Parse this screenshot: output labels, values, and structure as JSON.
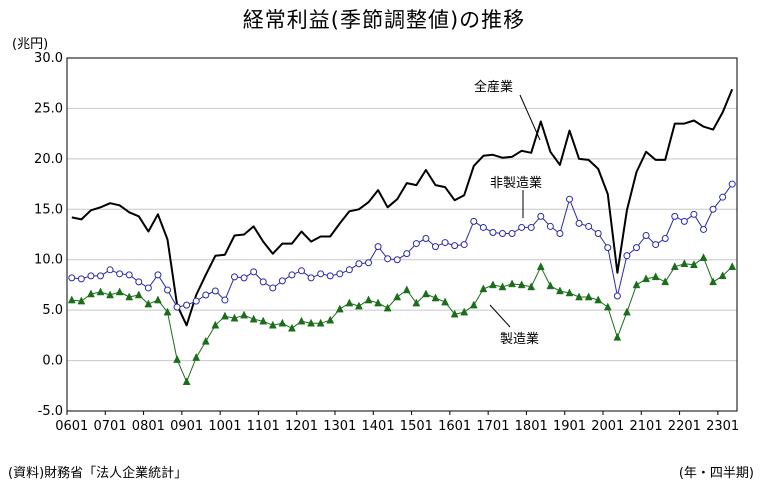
{
  "title": "経常利益(季節調整値)の推移",
  "unit_label": "(兆円)",
  "source_label": "(資料)財務省「法人企業統計」",
  "period_label": "(年・四半期)",
  "annotations": {
    "all": "全産業",
    "nonmfg": "非製造業",
    "mfg": "製造業"
  },
  "colors": {
    "all": "#000000",
    "nonmfg": "#2a2aa8",
    "mfg": "#1a6e1a",
    "grid": "#c8c8c8"
  },
  "chart_data": {
    "type": "line",
    "title": "経常利益(季節調整値)の推移",
    "ylabel": "(兆円)",
    "xlabel": "(年・四半期)",
    "ylim": [
      -5,
      30
    ],
    "yticks": [
      "-5.0",
      "0.0",
      "5.0",
      "10.0",
      "15.0",
      "20.0",
      "25.0",
      "30.0"
    ],
    "xtick_labels": [
      "0601",
      "0701",
      "0801",
      "0901",
      "1001",
      "1101",
      "1201",
      "1301",
      "1401",
      "1501",
      "1601",
      "1701",
      "1801",
      "1901",
      "2001",
      "2101",
      "2201",
      "2301"
    ],
    "grid": true,
    "series": [
      {
        "name": "全産業",
        "values": [
          14.2,
          14.0,
          14.9,
          15.2,
          15.6,
          15.4,
          14.7,
          14.3,
          12.8,
          14.5,
          12.0,
          5.5,
          3.5,
          6.5,
          8.5,
          10.4,
          10.5,
          12.4,
          12.5,
          13.3,
          11.8,
          10.6,
          11.6,
          11.6,
          12.8,
          11.8,
          12.3,
          12.3,
          13.6,
          14.8,
          15.0,
          15.7,
          16.9,
          15.2,
          16.0,
          17.6,
          17.4,
          18.9,
          17.4,
          17.2,
          15.9,
          16.4,
          19.3,
          20.3,
          20.4,
          20.1,
          20.2,
          20.8,
          20.6,
          23.7,
          20.7,
          19.4,
          22.8,
          20.0,
          19.9,
          19.0,
          16.5,
          8.7,
          14.9,
          18.7,
          20.7,
          19.9,
          19.9,
          23.5,
          23.5,
          23.8,
          23.2,
          22.9,
          24.6,
          26.9
        ]
      },
      {
        "name": "非製造業",
        "values": [
          8.2,
          8.1,
          8.4,
          8.4,
          9.0,
          8.6,
          8.5,
          7.8,
          7.2,
          8.5,
          7.0,
          5.3,
          5.5,
          5.9,
          6.5,
          6.9,
          6.0,
          8.3,
          8.2,
          8.8,
          7.8,
          7.2,
          7.9,
          8.5,
          8.9,
          8.2,
          8.6,
          8.4,
          8.6,
          9.0,
          9.6,
          9.7,
          11.3,
          10.1,
          10.0,
          10.6,
          11.6,
          12.1,
          11.3,
          11.7,
          11.4,
          11.5,
          13.8,
          13.2,
          12.7,
          12.6,
          12.6,
          13.2,
          13.2,
          14.3,
          13.3,
          12.6,
          16.0,
          13.6,
          13.3,
          12.6,
          11.2,
          6.4,
          10.4,
          11.2,
          12.4,
          11.5,
          12.1,
          14.3,
          13.8,
          14.5,
          13.0,
          15.0,
          16.2,
          17.5
        ]
      },
      {
        "name": "製造業",
        "values": [
          6.0,
          5.9,
          6.6,
          6.8,
          6.5,
          6.8,
          6.3,
          6.5,
          5.6,
          6.0,
          4.8,
          0.1,
          -2.1,
          0.3,
          1.9,
          3.5,
          4.4,
          4.2,
          4.5,
          4.1,
          3.9,
          3.5,
          3.7,
          3.2,
          3.9,
          3.7,
          3.7,
          4.0,
          5.1,
          5.7,
          5.4,
          6.0,
          5.7,
          5.2,
          6.3,
          7.0,
          5.7,
          6.6,
          6.2,
          5.8,
          4.6,
          4.8,
          5.5,
          7.1,
          7.5,
          7.3,
          7.6,
          7.5,
          7.3,
          9.3,
          7.4,
          6.9,
          6.7,
          6.3,
          6.3,
          6.0,
          5.3,
          2.3,
          4.8,
          7.5,
          8.1,
          8.3,
          7.8,
          9.3,
          9.6,
          9.5,
          10.2,
          7.8,
          8.4,
          9.3
        ]
      }
    ]
  }
}
